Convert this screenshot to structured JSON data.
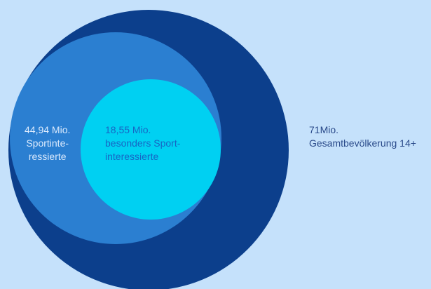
{
  "diagram": {
    "type": "nested-circles",
    "colors": {
      "background": "#c5e1fb",
      "total": "#0c3f8c",
      "sport": "#2b7fd1",
      "special": "#00d0f2"
    },
    "circles": [
      {
        "id": "total",
        "value_millions": 71,
        "lines": [
          "71Mio.",
          "Gesamtbevölkerung 14+"
        ]
      },
      {
        "id": "sport",
        "value_millions": 44.94,
        "lines": [
          "44,94 Mio.",
          "Sportinte-",
          "ressierte"
        ]
      },
      {
        "id": "special",
        "value_millions": 18.55,
        "lines": [
          "18,55 Mio.",
          "besonders Sport-",
          "interessierte"
        ]
      }
    ]
  }
}
